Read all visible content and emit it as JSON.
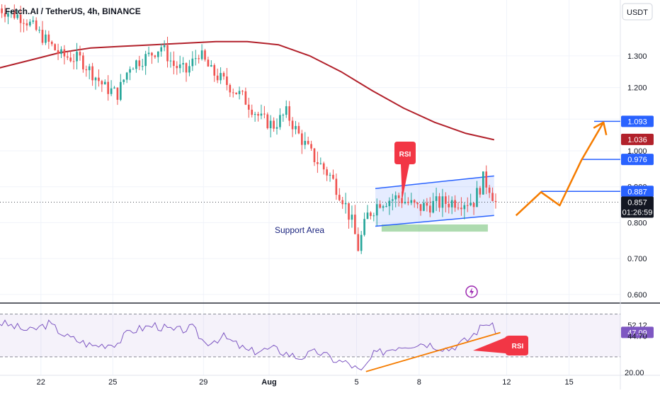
{
  "header": {
    "symbol": "Fetch.AI / TetherUS, 4h, BINANCE",
    "currency_button": "USDT"
  },
  "colors": {
    "up": "#26a69a",
    "down": "#ef5350",
    "ma": "#b2212b",
    "channel": "#2962ff",
    "projection": "#f57c00",
    "grid": "#f0f3fa"
  },
  "icons": {
    "flash": "lightning-icon"
  },
  "chart_data": [
    {
      "type": "candlestick",
      "title": "",
      "ylim": [
        0.58,
        1.42
      ],
      "y_ticks": [
        "0.600",
        "0.700",
        "0.800",
        "0.900",
        "1.000",
        "1.200",
        "1.300"
      ],
      "x_ticks": [
        "22",
        "25",
        "29",
        "Aug",
        "5",
        "8",
        "12",
        "15"
      ],
      "x_tick_values": [
        14,
        37,
        66,
        87,
        115,
        135,
        163,
        183
      ],
      "xlim": [
        0,
        208
      ],
      "price_labels": [
        {
          "text": "1.093",
          "value": 1.093,
          "style": "blue"
        },
        {
          "text": "1.036",
          "value": 1.036,
          "style": "red"
        },
        {
          "text": "0.976",
          "value": 0.976,
          "style": "blue"
        },
        {
          "text": "0.887",
          "value": 0.887,
          "style": "blue"
        },
        {
          "text": "0.857",
          "value": 0.857,
          "style": "dark"
        }
      ],
      "countdown": "01:26:59",
      "annotations": {
        "support": "Support Area",
        "rsi_callout": "RSI"
      },
      "ma_line": {
        "x": [
          0,
          10,
          20,
          30,
          40,
          50,
          60,
          70,
          80,
          90,
          100,
          110,
          120,
          130,
          140,
          150,
          159
        ],
        "y": [
          1.26,
          1.285,
          1.31,
          1.325,
          1.33,
          1.335,
          1.34,
          1.345,
          1.345,
          1.335,
          1.3,
          1.25,
          1.19,
          1.135,
          1.09,
          1.055,
          1.035
        ]
      },
      "candles_count": 160,
      "channel": {
        "upper": [
          [
            121,
            0.895
          ],
          [
            159,
            0.93
          ]
        ],
        "lower": [
          [
            121,
            0.79
          ],
          [
            159,
            0.82
          ]
        ]
      },
      "support_zone": {
        "x": [
          123,
          157
        ],
        "y": [
          0.775,
          0.795
        ]
      },
      "projection": {
        "x": [
          166,
          174,
          180,
          187,
          194
        ],
        "y": [
          0.82,
          0.885,
          0.848,
          0.975,
          1.09
        ]
      },
      "levels": [
        {
          "value": 1.093,
          "x_from": 191
        },
        {
          "value": 0.976,
          "x_from": 187
        },
        {
          "value": 0.887,
          "x_from": 174
        }
      ]
    },
    {
      "type": "line",
      "title": "",
      "ylim": [
        18,
        66
      ],
      "y_ticks": [
        "20.00"
      ],
      "value_labels": [
        {
          "text": "52.12",
          "value": 52.12,
          "style": "plain"
        },
        {
          "text": "47.09",
          "value": 47.09,
          "style": "purple"
        },
        {
          "text": "44.70",
          "value": 44.7,
          "style": "plain"
        }
      ],
      "bands": [
        59.5,
        30.5
      ],
      "rsi_points": 160,
      "trendline": {
        "x": [
          118,
          161
        ],
        "y": [
          20.5,
          47
        ]
      },
      "callout": "RSI"
    }
  ]
}
